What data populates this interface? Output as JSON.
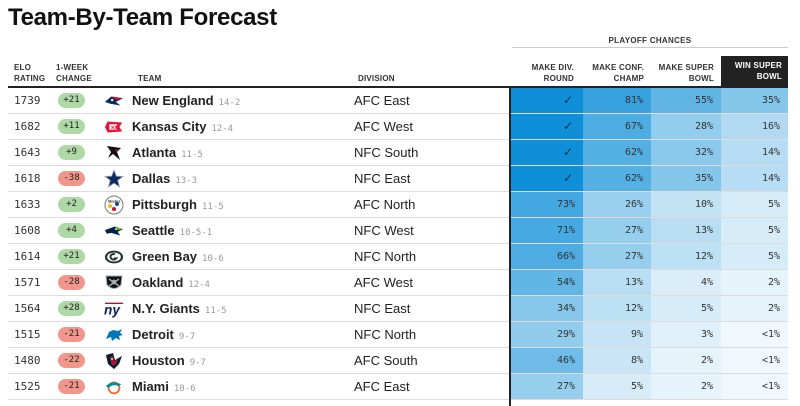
{
  "title": "Team-By-Team Forecast",
  "headers": {
    "elo_line1": "ELO",
    "elo_line2": "RATING",
    "change_line1": "1-WEEK",
    "change_line2": "CHANGE",
    "team": "TEAM",
    "division": "DIVISION",
    "playoff_chances": "PLAYOFF CHANCES",
    "make_div_line1": "MAKE DIV.",
    "make_div_line2": "ROUND",
    "make_conf_line1": "MAKE CONF.",
    "make_conf_line2": "CHAMP",
    "make_sb_line1": "MAKE SUPER",
    "make_sb_line2": "BOWL",
    "win_sb_line1": "WIN SUPER",
    "win_sb_line2": "BOWL"
  },
  "rows": [
    {
      "elo": "1739",
      "change": "+21",
      "change_dir": "pos",
      "logo": "patriots-logo",
      "team": "New England",
      "record": "14-2",
      "division": "AFC East",
      "div_round": "✓",
      "conf": "81%",
      "sb": "55%",
      "win": "35%",
      "levels": [
        1,
        0.81,
        0.55,
        0.35
      ]
    },
    {
      "elo": "1682",
      "change": "+11",
      "change_dir": "pos",
      "logo": "chiefs-logo",
      "team": "Kansas City",
      "record": "12-4",
      "division": "AFC West",
      "div_round": "✓",
      "conf": "67%",
      "sb": "28%",
      "win": "16%",
      "levels": [
        1,
        0.67,
        0.28,
        0.16
      ]
    },
    {
      "elo": "1643",
      "change": "+9",
      "change_dir": "pos",
      "logo": "falcons-logo",
      "team": "Atlanta",
      "record": "11-5",
      "division": "NFC South",
      "div_round": "✓",
      "conf": "62%",
      "sb": "32%",
      "win": "14%",
      "levels": [
        1,
        0.62,
        0.32,
        0.14
      ]
    },
    {
      "elo": "1618",
      "change": "-38",
      "change_dir": "neg",
      "logo": "cowboys-logo",
      "team": "Dallas",
      "record": "13-3",
      "division": "NFC East",
      "div_round": "✓",
      "conf": "62%",
      "sb": "35%",
      "win": "14%",
      "levels": [
        1,
        0.62,
        0.35,
        0.14
      ]
    },
    {
      "elo": "1633",
      "change": "+2",
      "change_dir": "pos",
      "logo": "steelers-logo",
      "team": "Pittsburgh",
      "record": "11-5",
      "division": "AFC North",
      "div_round": "73%",
      "conf": "26%",
      "sb": "10%",
      "win": "5%",
      "levels": [
        0.73,
        0.26,
        0.1,
        0.05
      ]
    },
    {
      "elo": "1608",
      "change": "+4",
      "change_dir": "pos",
      "logo": "seahawks-logo",
      "team": "Seattle",
      "record": "10-5-1",
      "division": "NFC West",
      "div_round": "71%",
      "conf": "27%",
      "sb": "13%",
      "win": "5%",
      "levels": [
        0.71,
        0.27,
        0.13,
        0.05
      ]
    },
    {
      "elo": "1614",
      "change": "+21",
      "change_dir": "pos",
      "logo": "packers-logo",
      "team": "Green Bay",
      "record": "10-6",
      "division": "NFC North",
      "div_round": "66%",
      "conf": "27%",
      "sb": "12%",
      "win": "5%",
      "levels": [
        0.66,
        0.27,
        0.12,
        0.05
      ]
    },
    {
      "elo": "1571",
      "change": "-28",
      "change_dir": "neg",
      "logo": "raiders-logo",
      "team": "Oakland",
      "record": "12-4",
      "division": "AFC West",
      "div_round": "54%",
      "conf": "13%",
      "sb": "4%",
      "win": "2%",
      "levels": [
        0.54,
        0.13,
        0.04,
        0.02
      ]
    },
    {
      "elo": "1564",
      "change": "+28",
      "change_dir": "pos",
      "logo": "giants-logo",
      "team": "N.Y. Giants",
      "record": "11-5",
      "division": "NFC East",
      "div_round": "34%",
      "conf": "12%",
      "sb": "5%",
      "win": "2%",
      "levels": [
        0.34,
        0.12,
        0.05,
        0.02
      ]
    },
    {
      "elo": "1515",
      "change": "-21",
      "change_dir": "neg",
      "logo": "lions-logo",
      "team": "Detroit",
      "record": "9-7",
      "division": "NFC North",
      "div_round": "29%",
      "conf": "9%",
      "sb": "3%",
      "win": "<1%",
      "levels": [
        0.29,
        0.09,
        0.03,
        0.005
      ]
    },
    {
      "elo": "1480",
      "change": "-22",
      "change_dir": "neg",
      "logo": "texans-logo",
      "team": "Houston",
      "record": "9-7",
      "division": "AFC South",
      "div_round": "46%",
      "conf": "8%",
      "sb": "2%",
      "win": "<1%",
      "levels": [
        0.46,
        0.08,
        0.02,
        0.005
      ]
    },
    {
      "elo": "1525",
      "change": "-21",
      "change_dir": "neg",
      "logo": "dolphins-logo",
      "team": "Miami",
      "record": "10-6",
      "division": "AFC East",
      "div_round": "27%",
      "conf": "5%",
      "sb": "2%",
      "win": "<1%",
      "levels": [
        0.27,
        0.05,
        0.02,
        0.005
      ]
    }
  ],
  "colors": {
    "accent_full": "#0f8fd8",
    "accent_light": "#ffffff",
    "positive": "#aed8a6",
    "negative": "#f0968a"
  }
}
